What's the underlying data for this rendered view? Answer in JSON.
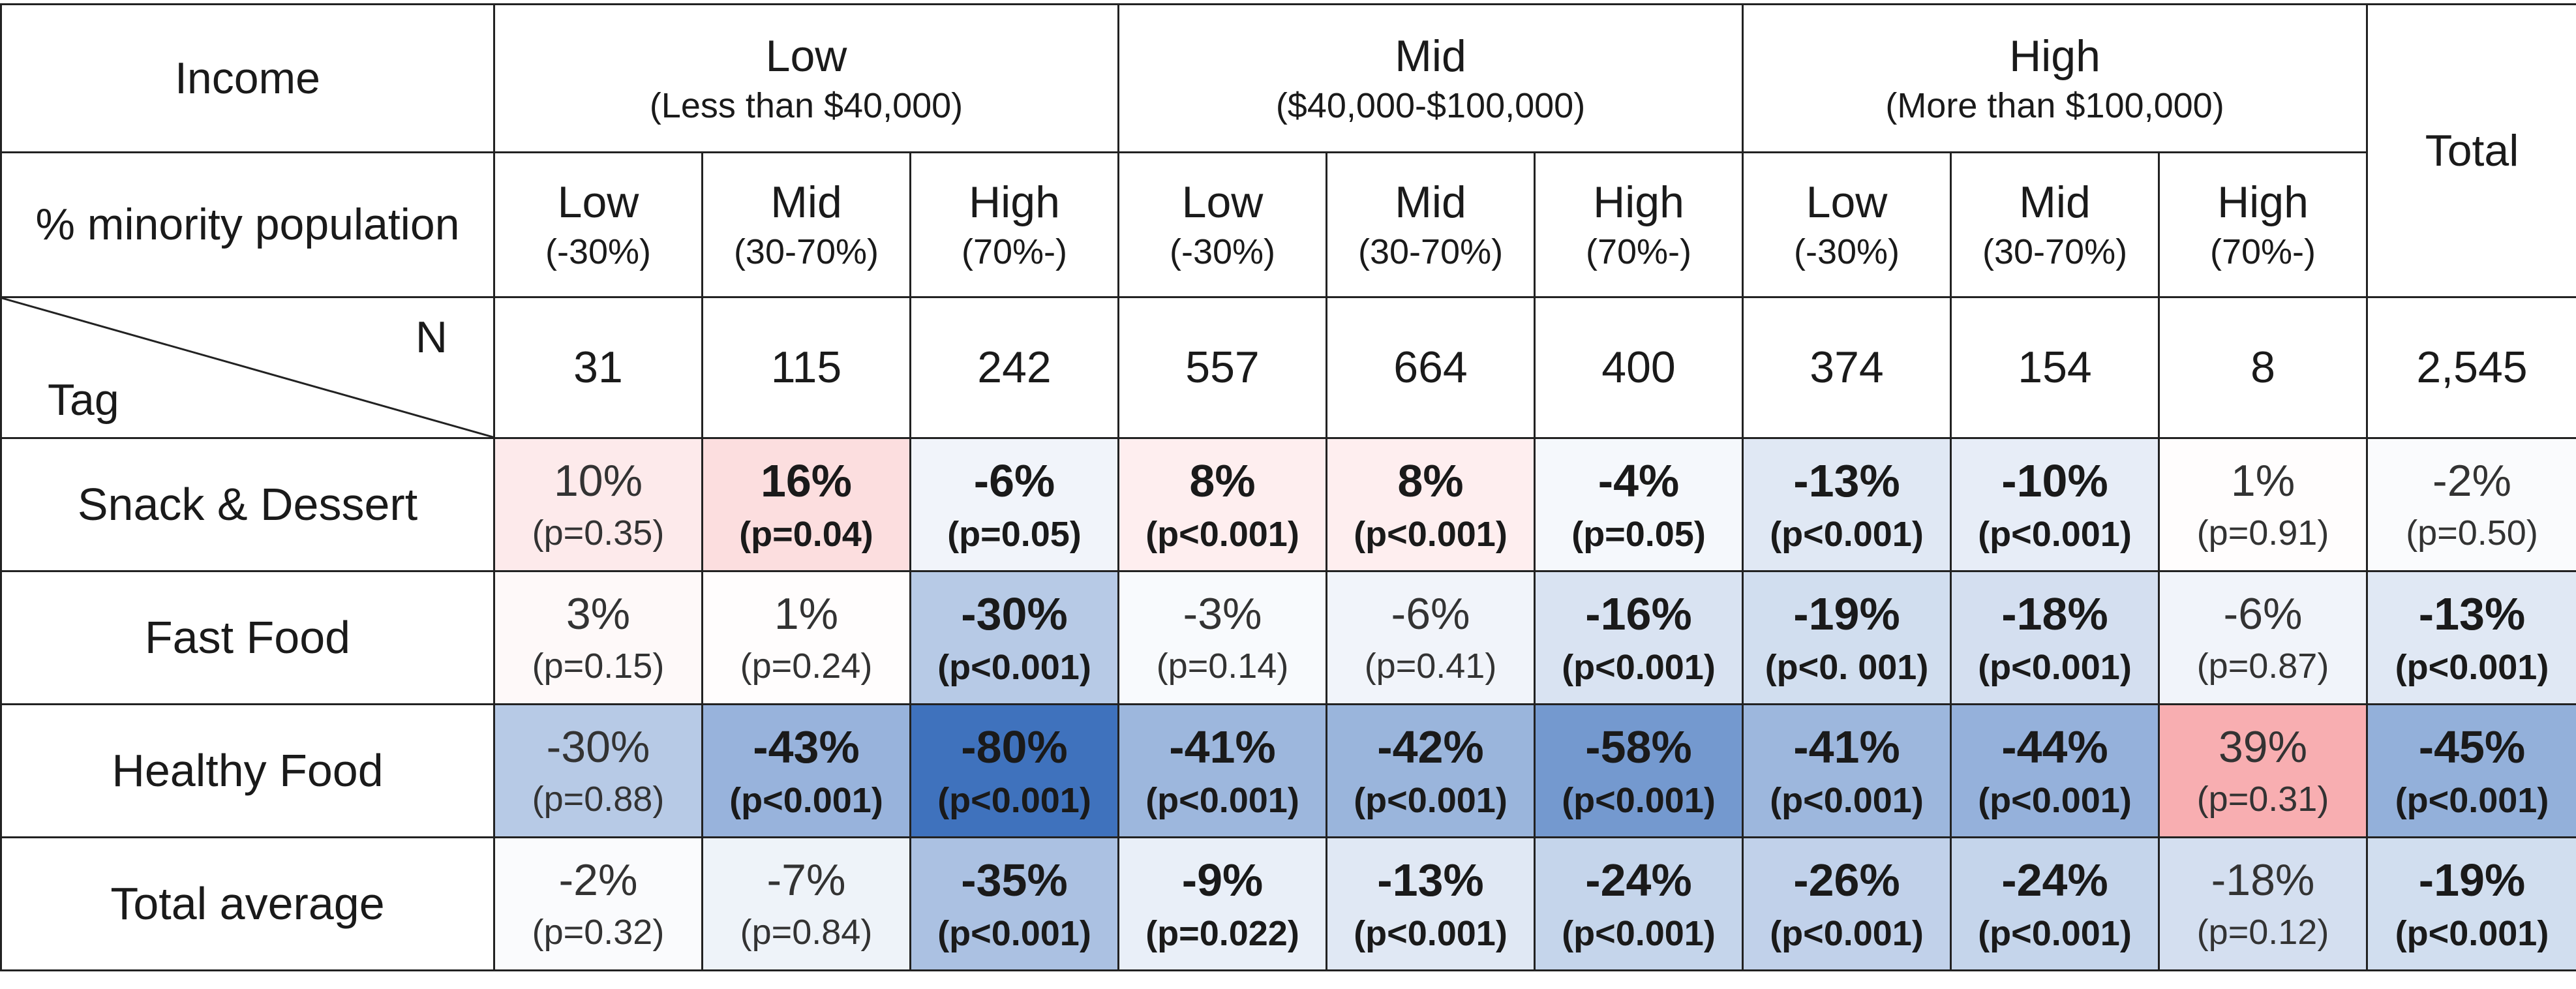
{
  "chart_data": {
    "type": "table",
    "header": {
      "income_label": "Income",
      "minority_label": "% minority population",
      "n_label": "N",
      "tag_label": "Tag",
      "total_label": "Total",
      "income_groups": [
        {
          "name": "Low",
          "range": "(Less than $40,000)"
        },
        {
          "name": "Mid",
          "range": "($40,000-$100,000)"
        },
        {
          "name": "High",
          "range": "(More than $100,000)"
        }
      ],
      "minority_groups": [
        {
          "name": "Low",
          "range": "(-30%)"
        },
        {
          "name": "Mid",
          "range": "(30-70%)"
        },
        {
          "name": "High",
          "range": "(70%-)"
        },
        {
          "name": "Low",
          "range": "(-30%)"
        },
        {
          "name": "Mid",
          "range": "(30-70%)"
        },
        {
          "name": "High",
          "range": "(70%-)"
        },
        {
          "name": "Low",
          "range": "(-30%)"
        },
        {
          "name": "Mid",
          "range": "(30-70%)"
        },
        {
          "name": "High",
          "range": "(70%-)"
        }
      ]
    },
    "n_values": [
      "31",
      "115",
      "242",
      "557",
      "664",
      "400",
      "374",
      "154",
      "8",
      "2,545"
    ],
    "color_scale": {
      "positive": "#f0595f",
      "neutral": "#ffffff",
      "negative": "#3f72bd",
      "max_abs_percent": 80
    },
    "rows": [
      {
        "tag": "Snack & Dessert",
        "cells": [
          {
            "value": 10,
            "text": "10%",
            "p": "(p=0.35)",
            "significant": false
          },
          {
            "value": 16,
            "text": "16%",
            "p": "(p=0.04)",
            "significant": true
          },
          {
            "value": -6,
            "text": "-6%",
            "p": "(p=0.05)",
            "significant": true
          },
          {
            "value": 8,
            "text": "8%",
            "p": "(p<0.001)",
            "significant": true
          },
          {
            "value": 8,
            "text": "8%",
            "p": "(p<0.001)",
            "significant": true
          },
          {
            "value": -4,
            "text": "-4%",
            "p": "(p=0.05)",
            "significant": true
          },
          {
            "value": -13,
            "text": "-13%",
            "p": "(p<0.001)",
            "significant": true
          },
          {
            "value": -10,
            "text": "-10%",
            "p": "(p<0.001)",
            "significant": true
          },
          {
            "value": 1,
            "text": "1%",
            "p": "(p=0.91)",
            "significant": false
          },
          {
            "value": -2,
            "text": "-2%",
            "p": "(p=0.50)",
            "significant": false
          }
        ]
      },
      {
        "tag": "Fast Food",
        "cells": [
          {
            "value": 3,
            "text": "3%",
            "p": "(p=0.15)",
            "significant": false
          },
          {
            "value": 1,
            "text": "1%",
            "p": "(p=0.24)",
            "significant": false
          },
          {
            "value": -30,
            "text": "-30%",
            "p": "(p<0.001)",
            "significant": true
          },
          {
            "value": -3,
            "text": "-3%",
            "p": "(p=0.14)",
            "significant": false
          },
          {
            "value": -6,
            "text": "-6%",
            "p": "(p=0.41)",
            "significant": false
          },
          {
            "value": -16,
            "text": "-16%",
            "p": "(p<0.001)",
            "significant": true
          },
          {
            "value": -19,
            "text": "-19%",
            "p": "(p<0. 001)",
            "significant": true
          },
          {
            "value": -18,
            "text": "-18%",
            "p": "(p<0.001)",
            "significant": true
          },
          {
            "value": -6,
            "text": "-6%",
            "p": "(p=0.87)",
            "significant": false
          },
          {
            "value": -13,
            "text": "-13%",
            "p": "(p<0.001)",
            "significant": true
          }
        ]
      },
      {
        "tag": "Healthy Food",
        "cells": [
          {
            "value": -30,
            "text": "-30%",
            "p": "(p=0.88)",
            "significant": false
          },
          {
            "value": -43,
            "text": "-43%",
            "p": "(p<0.001)",
            "significant": true
          },
          {
            "value": -80,
            "text": "-80%",
            "p": "(p<0.001)",
            "significant": true
          },
          {
            "value": -41,
            "text": "-41%",
            "p": "(p<0.001)",
            "significant": true
          },
          {
            "value": -42,
            "text": "-42%",
            "p": "(p<0.001)",
            "significant": true
          },
          {
            "value": -58,
            "text": "-58%",
            "p": "(p<0.001)",
            "significant": true
          },
          {
            "value": -41,
            "text": "-41%",
            "p": "(p<0.001)",
            "significant": true
          },
          {
            "value": -44,
            "text": "-44%",
            "p": "(p<0.001)",
            "significant": true
          },
          {
            "value": 39,
            "text": "39%",
            "p": "(p=0.31)",
            "significant": false
          },
          {
            "value": -45,
            "text": "-45%",
            "p": "(p<0.001)",
            "significant": true
          }
        ]
      },
      {
        "tag": "Total average",
        "cells": [
          {
            "value": -2,
            "text": "-2%",
            "p": "(p=0.32)",
            "significant": false
          },
          {
            "value": -7,
            "text": "-7%",
            "p": "(p=0.84)",
            "significant": false
          },
          {
            "value": -35,
            "text": "-35%",
            "p": "(p<0.001)",
            "significant": true
          },
          {
            "value": -9,
            "text": "-9%",
            "p": "(p=0.022)",
            "significant": true
          },
          {
            "value": -13,
            "text": "-13%",
            "p": "(p<0.001)",
            "significant": true
          },
          {
            "value": -24,
            "text": "-24%",
            "p": "(p<0.001)",
            "significant": true
          },
          {
            "value": -26,
            "text": "-26%",
            "p": "(p<0.001)",
            "significant": true
          },
          {
            "value": -24,
            "text": "-24%",
            "p": "(p<0.001)",
            "significant": true
          },
          {
            "value": -18,
            "text": "-18%",
            "p": "(p=0.12)",
            "significant": false
          },
          {
            "value": -19,
            "text": "-19%",
            "p": "(p<0.001)",
            "significant": true
          }
        ]
      }
    ]
  }
}
